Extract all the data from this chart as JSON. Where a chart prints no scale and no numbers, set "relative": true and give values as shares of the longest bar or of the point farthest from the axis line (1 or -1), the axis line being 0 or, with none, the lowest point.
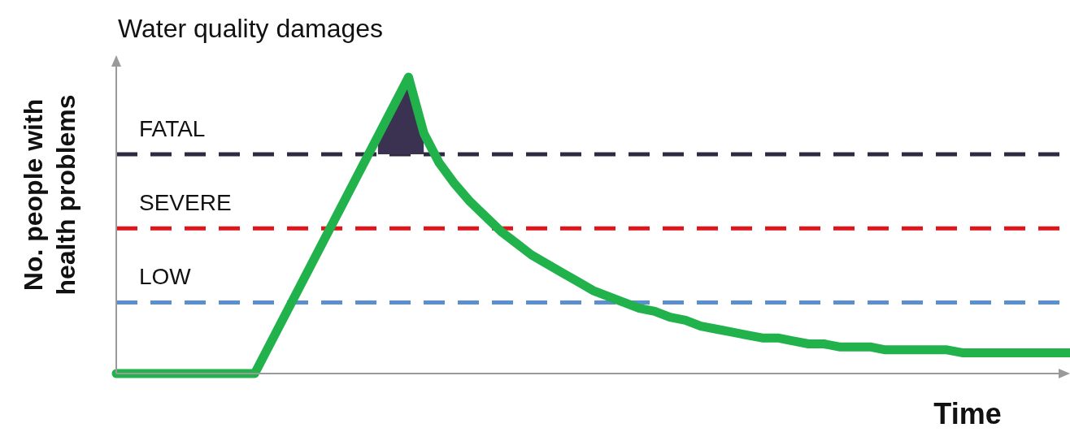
{
  "chart_data": {
    "type": "line",
    "title": "Water quality damages",
    "xlabel": "Time",
    "ylabel": "No. people with\nhealth problems",
    "relative": true,
    "categories": [
      null,
      null,
      null,
      null,
      null,
      null,
      null,
      null,
      null,
      null,
      null,
      null,
      null,
      null,
      null,
      null,
      null,
      null,
      null,
      null,
      null,
      null,
      null,
      null,
      null,
      null,
      null,
      null,
      null,
      null,
      null,
      null,
      null,
      null,
      null,
      null,
      null,
      null,
      null,
      null,
      null,
      null,
      null,
      null,
      null,
      null,
      null,
      null,
      null,
      null,
      null,
      null,
      null,
      null,
      null,
      null,
      null,
      null,
      null,
      null,
      null,
      null,
      null
    ],
    "series": [
      {
        "color": "#21b24b",
        "values": [
          0,
          0,
          0,
          0,
          0,
          0,
          0,
          0,
          0,
          0,
          0.1,
          0.2,
          0.3,
          0.4,
          0.5,
          0.6,
          0.7,
          0.8,
          0.9,
          1,
          0.81,
          0.71,
          0.64,
          0.58,
          0.53,
          0.48,
          0.44,
          0.4,
          0.37,
          0.34,
          0.31,
          0.28,
          0.26,
          0.24,
          0.22,
          0.21,
          0.19,
          0.18,
          0.16,
          0.15,
          0.14,
          0.13,
          0.12,
          0.12,
          0.11,
          0.1,
          0.1,
          0.09,
          0.09,
          0.09,
          0.08,
          0.08,
          0.08,
          0.08,
          0.08,
          0.07,
          0.07,
          0.07,
          0.07,
          0.07,
          0.07,
          0.07,
          0.07
        ]
      },
      {
        "type": "area",
        "color": "#3b3150",
        "values": [
          null,
          null,
          null,
          null,
          null,
          null,
          null,
          null,
          null,
          null,
          null,
          null,
          null,
          null,
          null,
          null,
          null,
          0.8,
          0.9,
          1,
          0.81,
          null,
          null,
          null,
          null,
          null,
          null,
          null,
          null,
          null,
          null,
          null,
          null,
          null,
          null,
          null,
          null,
          null,
          null,
          null,
          null,
          null,
          null,
          null,
          null,
          null,
          null,
          null,
          null,
          null,
          null,
          null,
          null,
          null,
          null,
          null,
          null,
          null,
          null,
          null,
          null,
          null,
          null
        ]
      }
    ],
    "ref_lines": [
      {
        "axis": "y",
        "value": 0.74,
        "label": "FATAL",
        "color": "#2e2a40",
        "line_style": "dashed"
      },
      {
        "axis": "y",
        "value": 0.49,
        "label": "SEVERE",
        "color": "#e0141b",
        "line_style": "dashed"
      },
      {
        "axis": "y",
        "value": 0.24,
        "label": "LOW",
        "color": "#5b8fce",
        "line_style": "dashed"
      }
    ]
  }
}
